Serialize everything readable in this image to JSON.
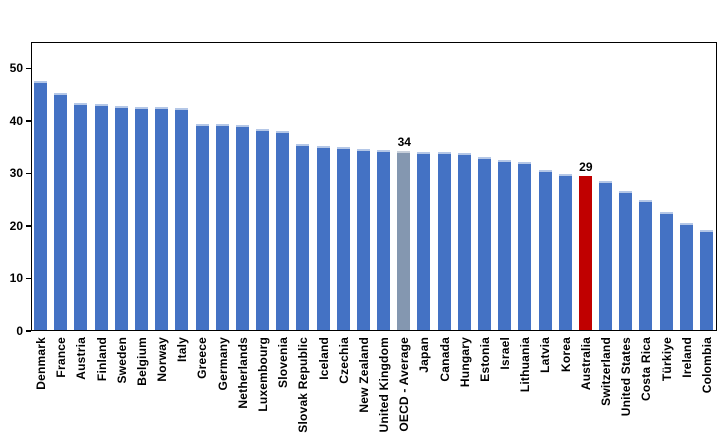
{
  "chart_data": {
    "type": "bar",
    "title": "",
    "xlabel": "",
    "ylabel": "",
    "categories": [
      "Denmark",
      "France",
      "Austria",
      "Finland",
      "Sweden",
      "Belgium",
      "Norway",
      "Italy",
      "Greece",
      "Germany",
      "Netherlands",
      "Luxembourg",
      "Slovenia",
      "Slovak Republic",
      "Iceland",
      "Czechia",
      "New Zealand",
      "United Kingdom",
      "OECD - Average",
      "Japan",
      "Canada",
      "Hungary",
      "Estonia",
      "Israel",
      "Lithuania",
      "Latvia",
      "Korea",
      "Australia",
      "Switzerland",
      "United States",
      "Costa Rica",
      "Türkiye",
      "Ireland",
      "Colombia"
    ],
    "values": [
      47.3,
      45.1,
      43.2,
      43.0,
      42.6,
      42.5,
      42.4,
      42.2,
      39.3,
      39.3,
      39.1,
      38.3,
      37.8,
      35.4,
      35.1,
      34.8,
      34.5,
      34.2,
      34.0,
      33.9,
      33.8,
      33.7,
      33.0,
      32.4,
      32.0,
      30.5,
      29.7,
      29.3,
      28.3,
      26.5,
      24.7,
      22.4,
      20.4,
      19.0
    ],
    "ylim": [
      0,
      55
    ],
    "yticks": [
      0,
      10,
      20,
      30,
      40,
      50
    ],
    "grid": false,
    "legend": false,
    "annotations": [
      {
        "index": 18,
        "text": "34"
      },
      {
        "index": 27,
        "text": "29"
      }
    ],
    "colors": {
      "default_fill": "#4472C4",
      "default_cap": "#B4C7E7",
      "overrides": {
        "18": {
          "fill": "#8497B0",
          "cap": "#C7CFDA"
        },
        "27": {
          "fill": "#C00000",
          "cap": "#C00000"
        }
      },
      "frame": "#000000",
      "text": "#000000",
      "background": "#FFFFFF"
    }
  }
}
